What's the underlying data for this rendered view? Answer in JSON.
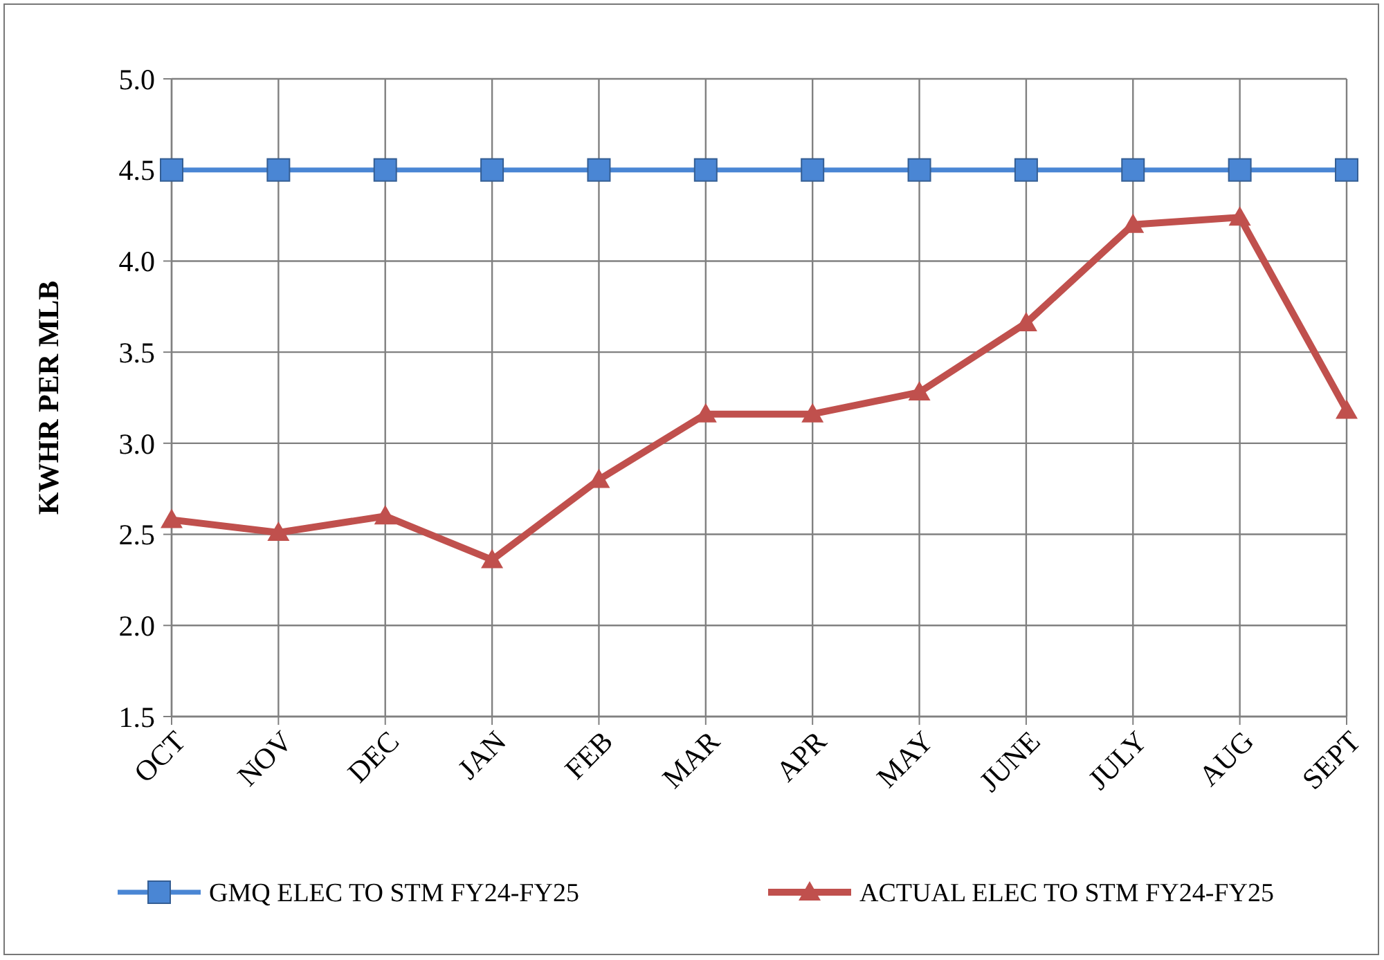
{
  "chart_data": {
    "type": "line",
    "ylabel": "KWHR PER MLB",
    "categories": [
      "OCT",
      "NOV",
      "DEC",
      "JAN",
      "FEB",
      "MAR",
      "APR",
      "MAY",
      "JUNE",
      "JULY",
      "AUG",
      "SEPT"
    ],
    "series": [
      {
        "name": "GMQ ELEC TO STM FY24-FY25",
        "color": "#4a86d4",
        "marker": "square",
        "values": [
          4.5,
          4.5,
          4.5,
          4.5,
          4.5,
          4.5,
          4.5,
          4.5,
          4.5,
          4.5,
          4.5,
          4.5
        ]
      },
      {
        "name": "ACTUAL ELEC TO STM FY24-FY25",
        "color": "#c0504d",
        "marker": "triangle",
        "values": [
          2.58,
          2.51,
          2.6,
          2.36,
          2.8,
          3.16,
          3.16,
          3.28,
          3.66,
          4.2,
          4.24,
          3.18
        ]
      }
    ],
    "ylim": [
      1.5,
      5.0
    ],
    "yticks": [
      {
        "value": 1.5,
        "label": "1.5"
      },
      {
        "value": 2,
        "label": "2.0"
      },
      {
        "value": 2.5,
        "label": "2.5"
      },
      {
        "value": 3,
        "label": "3.0"
      },
      {
        "value": 3.5,
        "label": "3.5"
      },
      {
        "value": 4,
        "label": "4.0"
      },
      {
        "value": 4.5,
        "label": "4.5"
      },
      {
        "value": 5,
        "label": "5.0"
      }
    ],
    "grid": true,
    "legend": "bottom"
  }
}
